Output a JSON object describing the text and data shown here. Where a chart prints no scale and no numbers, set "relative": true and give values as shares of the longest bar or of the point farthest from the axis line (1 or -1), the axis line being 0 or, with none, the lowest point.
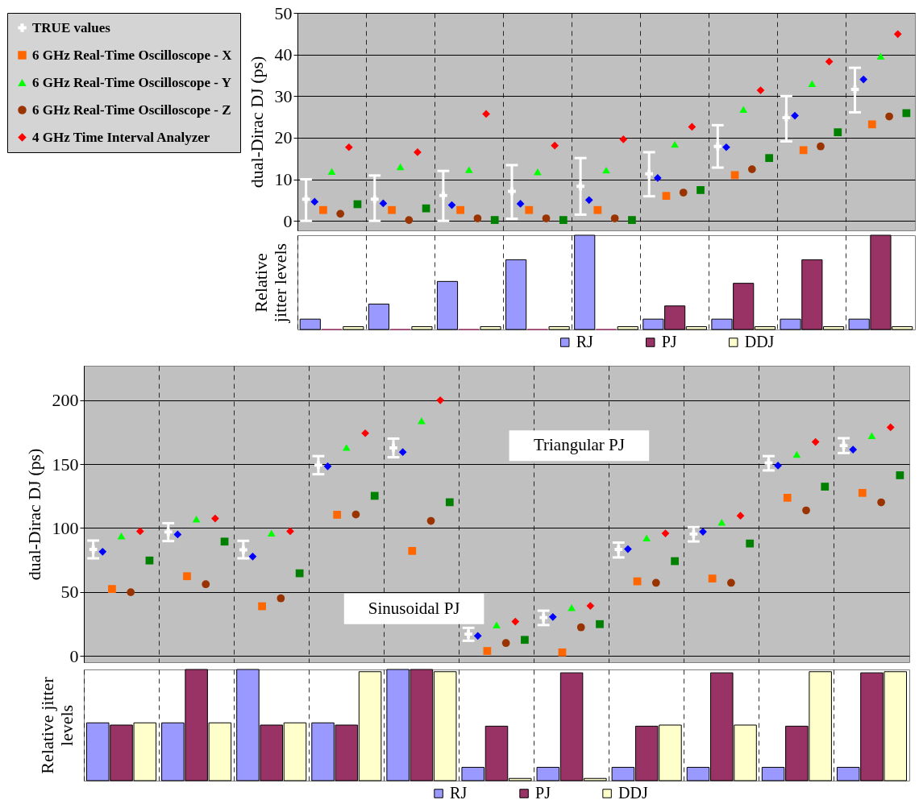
{
  "chart_data": [
    {
      "type": "scatter",
      "ylabel": "dual-Dirac DJ (ps)",
      "categories": [
        null,
        null,
        null,
        null,
        null,
        null,
        null,
        null,
        null
      ],
      "ylim": [
        -2.3,
        50
      ],
      "yticks": [
        0,
        10,
        20,
        30,
        40,
        50
      ],
      "grid": true,
      "legend": "left",
      "tick_labels": "y",
      "series": [
        {
          "name": "TRUE values",
          "color": "#ffffff",
          "marker": "cross",
          "values": [
            5.2,
            5.2,
            6.1,
            7.1,
            8.3,
            11.3,
            17.9,
            24.8,
            31.6
          ],
          "errors": [
            [
              0,
              10
            ],
            [
              0,
              10.9
            ],
            [
              0,
              12
            ],
            [
              0.5,
              13.4
            ],
            [
              1.5,
              15.1
            ],
            [
              5.9,
              16.5
            ],
            [
              12.8,
              23
            ],
            [
              19.1,
              30
            ],
            [
              26.1,
              36.8
            ]
          ]
        },
        {
          "color": "#0000ff",
          "marker": "diamond",
          "values": [
            4.6,
            4.2,
            3.8,
            4.1,
            5.0,
            10.3,
            17.7,
            25.3,
            34.0
          ]
        },
        {
          "name": "6 GHz Real-Time Oscilloscope - X",
          "color": "#ff6600",
          "marker": "square",
          "values": [
            2.6,
            2.6,
            2.6,
            2.6,
            2.6,
            6.0,
            11.0,
            17.0,
            23.2
          ]
        },
        {
          "name": "6 GHz Real-Time Oscilloscope - Y",
          "color": "#00ff00",
          "marker": "triangle",
          "values": [
            11.9,
            13.0,
            12.3,
            11.8,
            12.2,
            18.4,
            26.8,
            33.0,
            39.6
          ]
        },
        {
          "name": "6 GHz Real-Time Oscilloscope - Z",
          "color": "#993300",
          "marker": "circle",
          "values": [
            1.7,
            0.2,
            0.6,
            0.6,
            0.6,
            6.8,
            12.4,
            17.9,
            25.1
          ]
        },
        {
          "name": "4 GHz Time Interval Analyzer",
          "color": "#ff0000",
          "marker": "diamond",
          "values": [
            17.7,
            16.5,
            25.7,
            18.1,
            19.6,
            22.6,
            31.4,
            38.3,
            44.9
          ]
        },
        {
          "color": "#008000",
          "marker": "square",
          "values": [
            4.0,
            3.0,
            0.2,
            0.2,
            0.2,
            7.4,
            15.1,
            21.3,
            25.9
          ]
        }
      ]
    },
    {
      "type": "bar",
      "ylabel": "Relative jitter levels",
      "relative": true,
      "categories": [
        null,
        null,
        null,
        null,
        null,
        null,
        null,
        null,
        null
      ],
      "grid": "x",
      "legend": "bottom",
      "tick_labels": false,
      "series": [
        {
          "name": "RJ",
          "color": "#9999ff",
          "values": [
            0.11,
            0.27,
            0.51,
            0.74,
            1,
            0.11,
            0.11,
            0.11,
            0.11
          ]
        },
        {
          "name": "PJ",
          "color": "#993366",
          "values": [
            0,
            0,
            0,
            0,
            0,
            0.25,
            0.49,
            0.74,
            1
          ]
        },
        {
          "name": "DDJ",
          "color": "#ffffcc",
          "values": [
            0.03,
            0.03,
            0.03,
            0.03,
            0.03,
            0.03,
            0.03,
            0.03,
            0.03
          ]
        }
      ]
    },
    {
      "type": "scatter",
      "ylabel": "dual-Dirac DJ (ps)",
      "categories": [
        null,
        null,
        null,
        null,
        null,
        null,
        null,
        null,
        null,
        null,
        null
      ],
      "ylim": [
        -5,
        227
      ],
      "yticks": [
        0,
        50,
        100,
        150,
        200
      ],
      "grid": true,
      "tick_labels": "y",
      "annotations": [
        "Sinusoidal PJ",
        "Triangular PJ"
      ],
      "series": [
        {
          "color": "#ffffff",
          "marker": "cross",
          "values": [
            83.3,
            96.9,
            82.9,
            149.2,
            162.7,
            17.0,
            29.9,
            83.3,
            95.3,
            150.9,
            164.5
          ],
          "errors": [
            [
              76.3,
              90.2
            ],
            [
              89.8,
              103.8
            ],
            [
              76.3,
              90
            ],
            [
              142.1,
              156.3
            ],
            [
              155.4,
              170
            ],
            [
              11.8,
              21.9
            ],
            [
              24.1,
              35.3
            ],
            [
              77,
              88.6
            ],
            [
              89.5,
              100.7
            ],
            [
              145.1,
              156.3
            ],
            [
              158.7,
              170.3
            ]
          ]
        },
        {
          "color": "#0000ff",
          "marker": "diamond",
          "values": [
            81.5,
            95,
            77.7,
            148.3,
            159.4,
            15.6,
            30.4,
            83.5,
            97.1,
            148.9,
            161.4
          ]
        },
        {
          "color": "#ff6600",
          "marker": "square",
          "values": [
            52.3,
            62.3,
            38.8,
            110.4,
            82.1,
            3.8,
            2.7,
            58.3,
            60.5,
            123.7,
            127.5
          ]
        },
        {
          "color": "#00ff00",
          "marker": "triangle",
          "values": [
            93.8,
            107.1,
            96,
            163.1,
            184,
            24.1,
            37.7,
            92.2,
            104.5,
            157.6,
            172.3
          ]
        },
        {
          "color": "#993300",
          "marker": "circle",
          "values": [
            49.8,
            56,
            45,
            110.6,
            105.6,
            10,
            22.3,
            57.1,
            57.1,
            113.8,
            120.1
          ]
        },
        {
          "color": "#ff0000",
          "marker": "diamond",
          "values": [
            97.5,
            107.5,
            97.5,
            174.2,
            200,
            26.8,
            39.1,
            95.8,
            109.6,
            167.4,
            178.8
          ]
        },
        {
          "color": "#008000",
          "marker": "square",
          "values": [
            74.6,
            89.4,
            64.6,
            125.2,
            120.2,
            12.5,
            24.8,
            74.1,
            87.9,
            132.4,
            141.3
          ]
        }
      ]
    },
    {
      "type": "bar",
      "ylabel": "Relative jitter levels",
      "relative": true,
      "categories": [
        null,
        null,
        null,
        null,
        null,
        null,
        null,
        null,
        null,
        null,
        null
      ],
      "grid": "x",
      "legend": "bottom",
      "tick_labels": false,
      "series": [
        {
          "name": "RJ",
          "color": "#9999ff",
          "values": [
            0.52,
            0.52,
            1,
            0.52,
            1,
            0.12,
            0.12,
            0.12,
            0.12,
            0.12,
            0.12
          ]
        },
        {
          "name": "PJ",
          "color": "#993366",
          "values": [
            0.5,
            1,
            0.5,
            0.5,
            1,
            0.49,
            0.97,
            0.49,
            0.97,
            0.49,
            0.97
          ]
        },
        {
          "name": "DDJ",
          "color": "#ffffcc",
          "values": [
            0.52,
            0.52,
            0.52,
            0.98,
            0.98,
            0.02,
            0.02,
            0.5,
            0.5,
            0.98,
            0.98
          ]
        }
      ]
    }
  ]
}
